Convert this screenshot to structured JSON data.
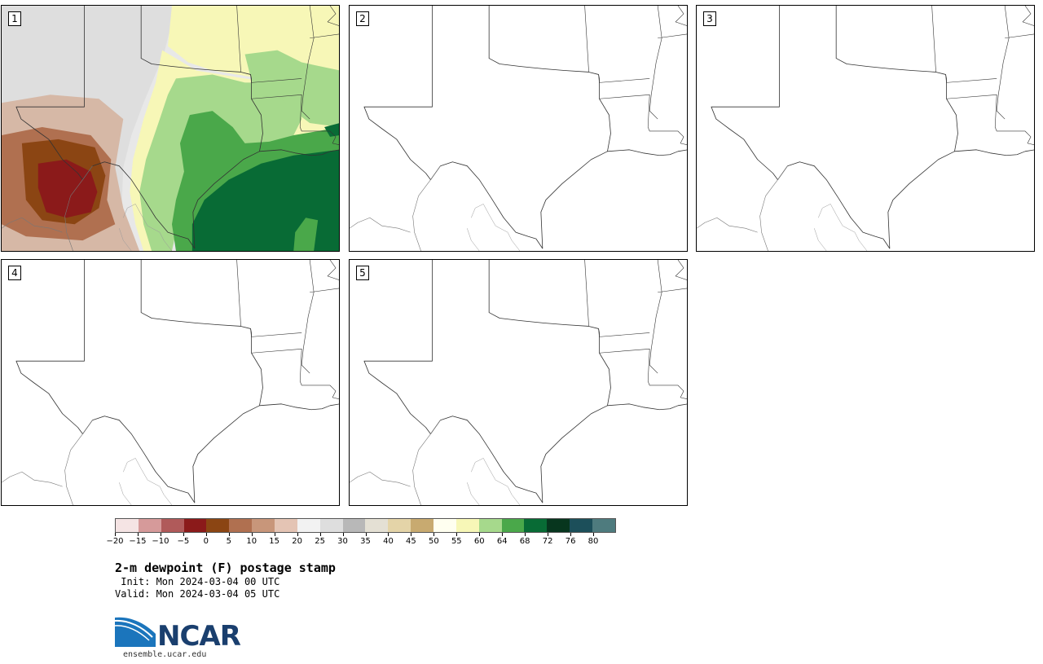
{
  "panels": [
    {
      "label": "1",
      "filled": true
    },
    {
      "label": "2",
      "filled": false
    },
    {
      "label": "3",
      "filled": false
    },
    {
      "label": "4",
      "filled": false
    },
    {
      "label": "5",
      "filled": false
    }
  ],
  "colorbar": {
    "colors": [
      "#f5e4e4",
      "#d69a9a",
      "#b05a5a",
      "#8b1a1a",
      "#8b4513",
      "#b07050",
      "#c8967a",
      "#e4c4b4",
      "#f2f2f2",
      "#dedede",
      "#b8b8b8",
      "#e4e0d4",
      "#e4d4a8",
      "#c8aa70",
      "#fffff0",
      "#f7f7b7",
      "#a6d98c",
      "#4aa84a",
      "#086b35",
      "#07361e",
      "#1c4f5a",
      "#4e7b7e"
    ],
    "tick_labels": [
      "−20",
      "−15",
      "−10",
      "−5",
      "0",
      "5",
      "10",
      "15",
      "20",
      "25",
      "30",
      "35",
      "40",
      "45",
      "50",
      "55",
      "60",
      "64",
      "68",
      "72",
      "76",
      "80"
    ]
  },
  "title": "2-m dewpoint (F) postage stamp",
  "init": " Init: Mon 2024-03-04 00 UTC",
  "valid": "Valid: Mon 2024-03-04 05 UTC",
  "logo": {
    "text": "NCAR",
    "site": "ensemble.ucar.edu"
  }
}
